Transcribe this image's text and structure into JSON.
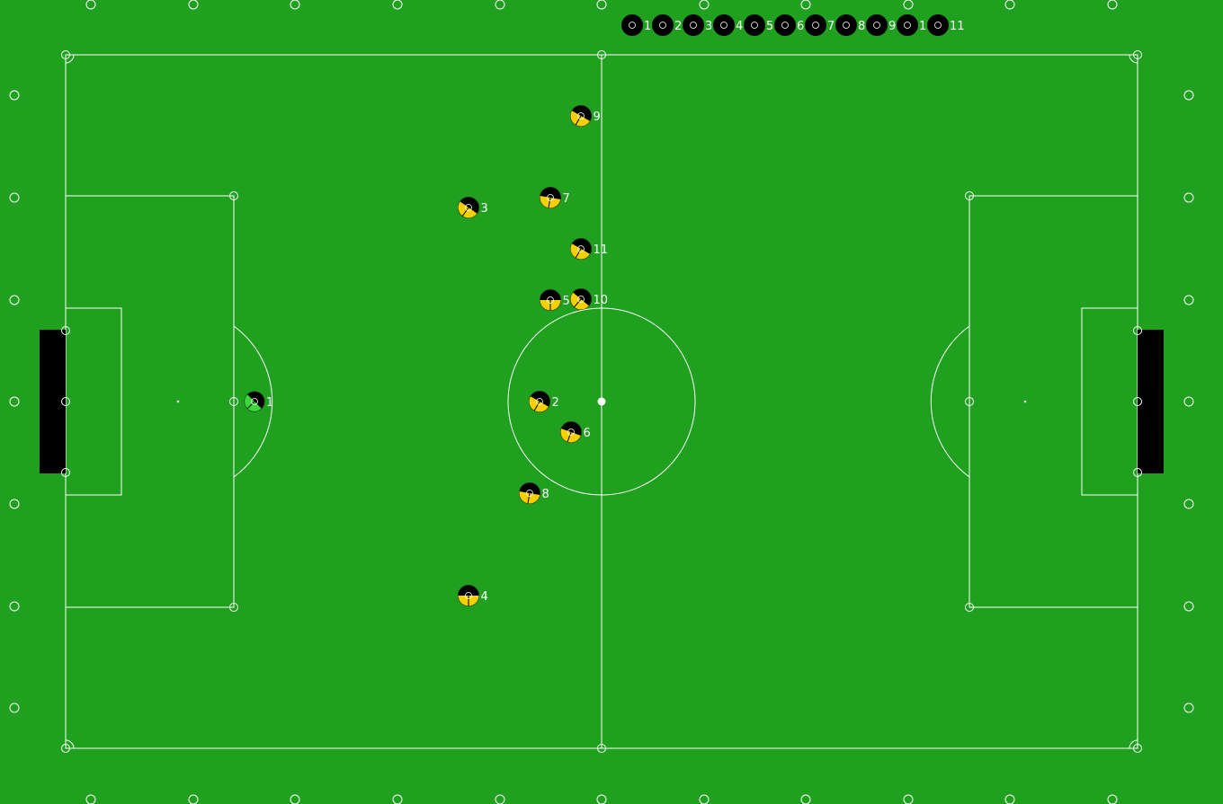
{
  "colors": {
    "grass": "#1fa01f",
    "line": "#ffffff",
    "goal": "#000000",
    "team_body": "#000000",
    "team_accent": "#f5d000",
    "goalie_accent": "#3ad83a",
    "bench_body": "#000000",
    "label": "#ffffff"
  },
  "icons": {
    "player": "player-marker-icon",
    "flag": "field-flag-icon",
    "bench": "substitute-marker-icon"
  },
  "bench": {
    "labels": [
      "1",
      "2",
      "3",
      "4",
      "5",
      "6",
      "7",
      "8",
      "9",
      "1",
      "11"
    ]
  },
  "players": [
    {
      "label": "1",
      "role": "goalie"
    },
    {
      "label": "2",
      "role": "field"
    },
    {
      "label": "3",
      "role": "field"
    },
    {
      "label": "4",
      "role": "field"
    },
    {
      "label": "5",
      "role": "field"
    },
    {
      "label": "6",
      "role": "field"
    },
    {
      "label": "7",
      "role": "field"
    },
    {
      "label": "8",
      "role": "field"
    },
    {
      "label": "9",
      "role": "field"
    },
    {
      "label": "10",
      "role": "field"
    },
    {
      "label": "11",
      "role": "field"
    }
  ]
}
